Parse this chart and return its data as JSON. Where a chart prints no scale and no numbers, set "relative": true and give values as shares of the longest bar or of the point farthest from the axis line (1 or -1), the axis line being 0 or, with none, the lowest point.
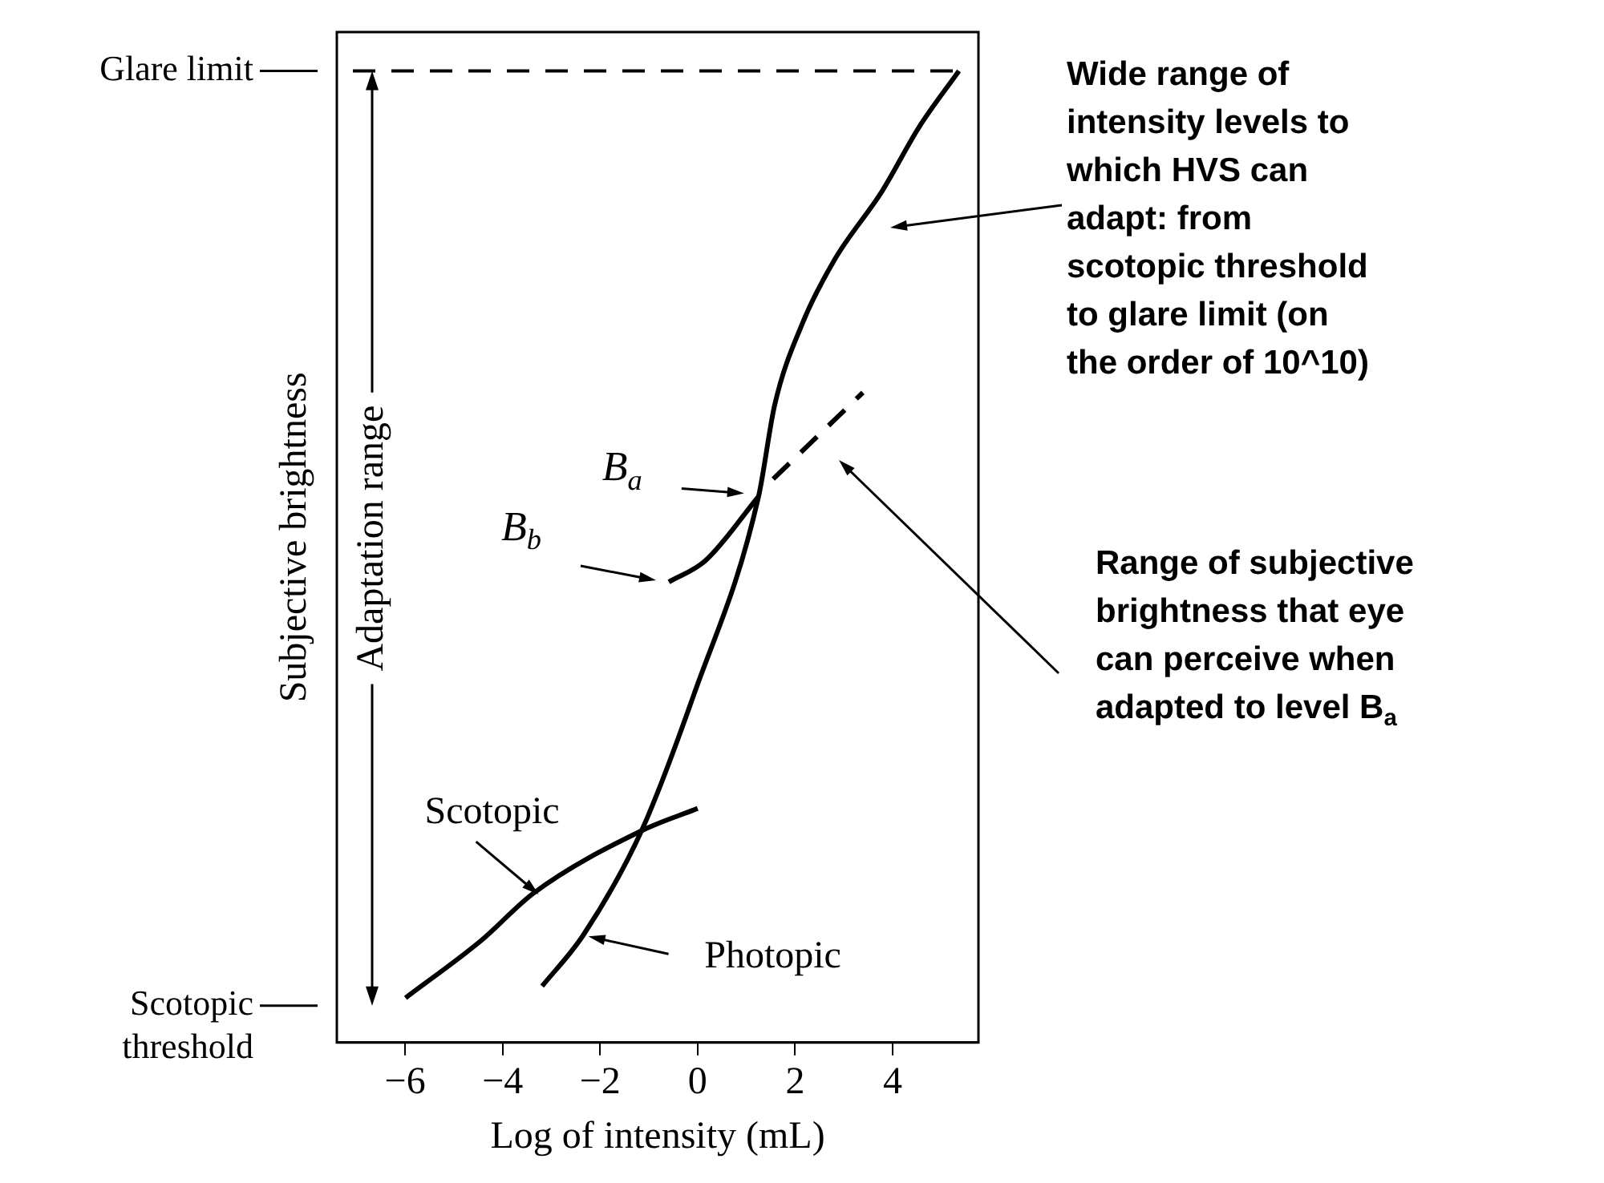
{
  "chart_data": {
    "type": "line",
    "relative": true,
    "xlabel": "Log of intensity (mL)",
    "ylabel": "Subjective brightness",
    "xlim": [
      -7.4,
      5.76
    ],
    "xticks": [
      {
        "value": -6,
        "label": "−6"
      },
      {
        "value": -4,
        "label": "−4"
      },
      {
        "value": -2,
        "label": "−2"
      },
      0,
      2,
      4
    ],
    "series": [
      {
        "name": "Photopic",
        "color": "#000000",
        "line_style": "solid",
        "x": [
          -3.19,
          -2.34,
          -1.15,
          -0.07,
          1.25,
          1.58,
          2.14,
          2.8,
          3.78,
          4.54,
          5.36
        ],
        "values": [
          0.058,
          0.111,
          0.218,
          0.359,
          0.562,
          0.656,
          0.739,
          0.805,
          0.876,
          0.942,
          1.0
        ]
      },
      {
        "name": "Scotopic",
        "color": "#000000",
        "line_style": "solid",
        "x": [
          -5.99,
          -4.44,
          -3.36,
          -1.15,
          0.0
        ],
        "values": [
          0.046,
          0.105,
          0.154,
          0.218,
          0.241
        ]
      },
      {
        "color": "#000000",
        "line_style": "solid",
        "x": [
          -0.59,
          0.16,
          1.25
        ],
        "values": [
          0.474,
          0.496,
          0.562
        ]
      },
      {
        "color": "#000000",
        "line_style": "dashed",
        "x": [
          1.55,
          3.39
        ],
        "values": [
          0.58,
          0.669
        ]
      }
    ],
    "ref_lines": [
      {
        "axis": "y",
        "value": 1.0,
        "label": "Glare limit",
        "line_style": "dashed"
      },
      {
        "axis": "y",
        "value": 0.038,
        "label": "Scotopic threshold",
        "line_style": "solid"
      }
    ],
    "annotations": [
      {
        "text": "B$_{a}$",
        "x": 1.25,
        "y": 0.562
      },
      "B$_{b}$",
      "Wide range of intensity levels to which HVS can adapt: from scotopic threshold to glare limit (on the order of 10^10)",
      "Range of subjective brightness that eye can perceive when adapted to level B$_{a}$",
      "Adaptation range"
    ]
  }
}
